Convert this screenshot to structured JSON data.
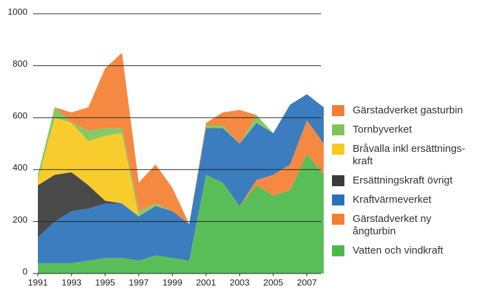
{
  "chart_data": {
    "type": "stacked-area",
    "x": [
      1991,
      1992,
      1993,
      1994,
      1995,
      1996,
      1997,
      1998,
      1999,
      2000,
      2001,
      2002,
      2003,
      2004,
      2005,
      2006,
      2007,
      2008
    ],
    "xlim": [
      1991,
      2008
    ],
    "xticks": [
      1991,
      1993,
      1995,
      1997,
      1999,
      2001,
      2003,
      2005,
      2007
    ],
    "ylim": [
      0,
      1000
    ],
    "yticks": [
      0,
      200,
      400,
      600,
      800,
      1000
    ],
    "grid": true,
    "legend": "right",
    "series": [
      {
        "name": "Vatten och vindkraft",
        "color": "#4cb84a",
        "values": [
          40,
          40,
          40,
          50,
          60,
          60,
          50,
          70,
          60,
          50,
          380,
          350,
          260,
          340,
          300,
          320,
          460,
          380
        ]
      },
      {
        "name": "Gärstadverket ny ångturbin",
        "color": "#f47f32",
        "values": [
          0,
          0,
          0,
          0,
          0,
          0,
          0,
          0,
          0,
          0,
          0,
          0,
          0,
          20,
          80,
          100,
          130,
          120
        ]
      },
      {
        "name": "Kraftvärmeverket",
        "color": "#2a72b8",
        "values": [
          100,
          160,
          200,
          200,
          210,
          210,
          170,
          190,
          180,
          140,
          180,
          210,
          240,
          220,
          160,
          230,
          100,
          140
        ]
      },
      {
        "name": "Ersättningskraft övrigt",
        "color": "#3a3a3a",
        "values": [
          200,
          180,
          150,
          90,
          10,
          0,
          0,
          0,
          0,
          0,
          0,
          0,
          0,
          0,
          0,
          0,
          0,
          0
        ]
      },
      {
        "name": "Bråvalla inkl ersättnings-kraft",
        "color": "#f8c81c",
        "values": [
          20,
          220,
          190,
          170,
          250,
          270,
          0,
          0,
          0,
          0,
          0,
          0,
          0,
          0,
          0,
          0,
          0,
          0
        ]
      },
      {
        "name": "Tornbyverket",
        "color": "#7dc45a",
        "values": [
          20,
          40,
          0,
          40,
          30,
          20,
          20,
          10,
          0,
          0,
          10,
          10,
          0,
          30,
          0,
          0,
          0,
          0
        ]
      },
      {
        "name": "Gärstadverket gasturbin",
        "color": "#f47f32",
        "values": [
          0,
          0,
          40,
          90,
          230,
          290,
          110,
          150,
          90,
          0,
          10,
          50,
          130,
          0,
          0,
          0,
          0,
          0
        ]
      }
    ]
  }
}
